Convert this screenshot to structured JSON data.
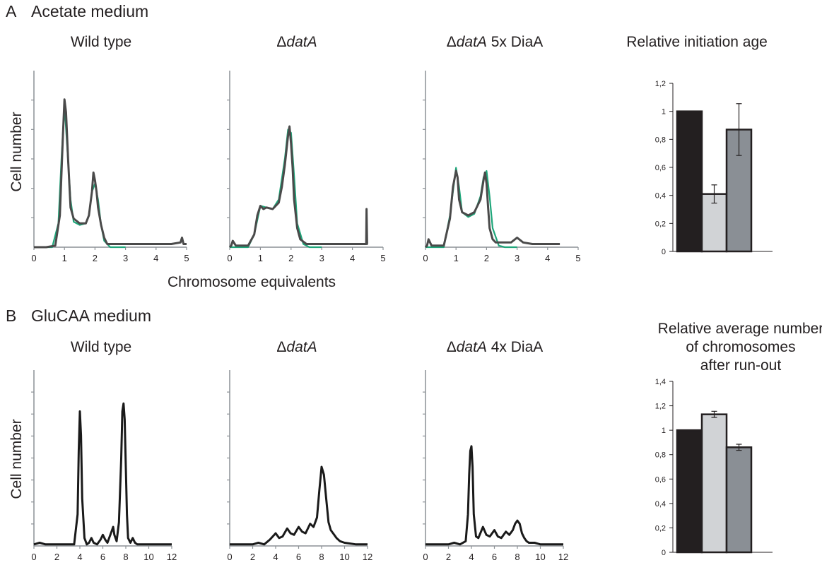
{
  "panels": {
    "A": {
      "letter": "A",
      "label": "Acetate medium"
    },
    "B": {
      "letter": "B",
      "label": "GluCAA medium"
    }
  },
  "axis_labels": {
    "ylabel": "Cell number",
    "xlabel": "Chromosome equivalents"
  },
  "titles": {
    "wild_type": "Wild type",
    "delta_symbol": "Δ",
    "datA": "datA",
    "diaA5": " 5x DiaA",
    "diaA4": " 4x DiaA",
    "initiation_age": "Relative initiation age",
    "runout_line1": "Relative average number",
    "runout_line2": "of chromosomes",
    "runout_line3": "after run-out"
  },
  "colors": {
    "measured": "#4a4a4a",
    "fit": "#1fa67a",
    "trace_b": "#1a1a1a",
    "bar_wt": "#231f20",
    "bar_datA": "#d1d3d6",
    "bar_diaA": "#8a8f95",
    "axis": "#8c9196"
  },
  "chart_data": [
    {
      "type": "line",
      "panel": "A",
      "title": "Wild type",
      "xlim": [
        0,
        5
      ],
      "xticks": [
        "0",
        "1",
        "2",
        "3",
        "4",
        "5"
      ],
      "ylabel": "Cell number",
      "xlabel": "Chromosome equivalents",
      "series": [
        {
          "x": [
            0,
            0.4,
            0.7,
            0.85,
            0.95,
            1.0,
            1.05,
            1.12,
            1.2,
            1.3,
            1.5,
            1.7,
            1.8,
            1.9,
            1.95,
            2.0,
            2.05,
            2.1,
            2.2,
            2.3,
            2.4,
            2.6,
            3,
            3.5,
            4,
            4.5,
            4.8,
            4.85,
            4.9,
            5
          ],
          "y": [
            0,
            0,
            0.01,
            0.2,
            0.7,
            0.93,
            0.85,
            0.55,
            0.25,
            0.18,
            0.15,
            0.15,
            0.2,
            0.35,
            0.47,
            0.42,
            0.35,
            0.25,
            0.14,
            0.06,
            0.02,
            0.02,
            0.02,
            0.02,
            0.02,
            0.02,
            0.03,
            0.06,
            0.02,
            0.02
          ]
        },
        {
          "x": [
            0,
            0.6,
            0.8,
            0.9,
            1.0,
            1.1,
            1.2,
            1.3,
            1.5,
            1.7,
            1.8,
            1.9,
            2.0,
            2.1,
            2.2,
            2.3,
            2.5,
            3
          ],
          "y": [
            0,
            0,
            0.15,
            0.55,
            0.9,
            0.6,
            0.3,
            0.16,
            0.14,
            0.15,
            0.2,
            0.35,
            0.4,
            0.3,
            0.14,
            0.04,
            0,
            0
          ]
        }
      ]
    },
    {
      "type": "line",
      "panel": "A",
      "title": "ΔdatA",
      "xlim": [
        0,
        5
      ],
      "xticks": [
        "0",
        "1",
        "2",
        "3",
        "4",
        "5"
      ],
      "series": [
        {
          "x": [
            0,
            0.05,
            0.1,
            0.2,
            0.6,
            0.8,
            0.9,
            1.0,
            1.1,
            1.2,
            1.4,
            1.6,
            1.7,
            1.8,
            1.9,
            1.95,
            2.0,
            2.05,
            2.1,
            2.2,
            2.3,
            2.5,
            3,
            3.5,
            4,
            4.45,
            4.46,
            4.48,
            4.5
          ],
          "y": [
            0,
            0.01,
            0.04,
            0.01,
            0.01,
            0.08,
            0.2,
            0.26,
            0.24,
            0.25,
            0.24,
            0.28,
            0.38,
            0.52,
            0.7,
            0.76,
            0.65,
            0.5,
            0.3,
            0.12,
            0.05,
            0.02,
            0.02,
            0.02,
            0.02,
            0.02,
            0.24,
            0.02,
            0.02
          ]
        },
        {
          "x": [
            0,
            0.6,
            0.8,
            1.0,
            1.2,
            1.4,
            1.6,
            1.8,
            1.9,
            2.0,
            2.1,
            2.2,
            2.4,
            2.6,
            3
          ],
          "y": [
            0,
            0,
            0.08,
            0.26,
            0.25,
            0.24,
            0.3,
            0.56,
            0.74,
            0.72,
            0.45,
            0.15,
            0.02,
            0,
            0
          ]
        }
      ]
    },
    {
      "type": "line",
      "panel": "A",
      "title": "ΔdatA 5x DiaA",
      "xlim": [
        0,
        5
      ],
      "xticks": [
        "0",
        "1",
        "2",
        "3",
        "4",
        "5"
      ],
      "series": [
        {
          "x": [
            0,
            0.05,
            0.1,
            0.2,
            0.6,
            0.8,
            0.9,
            1.0,
            1.05,
            1.1,
            1.2,
            1.4,
            1.6,
            1.8,
            1.9,
            1.95,
            2.0,
            2.05,
            2.1,
            2.2,
            2.3,
            2.5,
            2.8,
            3.0,
            3.2,
            3.5,
            4,
            4.4
          ],
          "y": [
            0,
            0.01,
            0.05,
            0.01,
            0.01,
            0.18,
            0.38,
            0.48,
            0.44,
            0.3,
            0.22,
            0.2,
            0.22,
            0.3,
            0.42,
            0.47,
            0.4,
            0.25,
            0.12,
            0.05,
            0.03,
            0.03,
            0.03,
            0.06,
            0.03,
            0.02,
            0.02,
            0.02
          ]
        },
        {
          "x": [
            0,
            0.6,
            0.8,
            1.0,
            1.1,
            1.2,
            1.4,
            1.6,
            1.8,
            1.9,
            2.0,
            2.1,
            2.2,
            2.4,
            2.6,
            3
          ],
          "y": [
            0,
            0,
            0.2,
            0.5,
            0.38,
            0.22,
            0.19,
            0.21,
            0.32,
            0.44,
            0.48,
            0.32,
            0.12,
            0.01,
            0,
            0
          ]
        }
      ]
    },
    {
      "type": "bar",
      "panel": "A",
      "title": "Relative initiation age",
      "ylim": [
        0,
        1.2
      ],
      "yticks": [
        "0",
        "0,2",
        "0,4",
        "0,6",
        "0,8",
        "1",
        "1,2"
      ],
      "values": [
        1.0,
        0.41,
        0.87
      ],
      "errors": [
        0,
        0.065,
        0.185
      ]
    },
    {
      "type": "line",
      "panel": "B",
      "title": "Wild type",
      "xlim": [
        0,
        12
      ],
      "xticks": [
        "0",
        "2",
        "4",
        "6",
        "8",
        "10",
        "12"
      ],
      "ylabel": "Cell number",
      "series": [
        {
          "x": [
            0,
            0.5,
            1,
            2,
            3,
            3.5,
            3.8,
            3.9,
            4.0,
            4.1,
            4.2,
            4.4,
            4.6,
            4.8,
            5.0,
            5.2,
            5.5,
            5.8,
            6.0,
            6.2,
            6.4,
            6.7,
            6.9,
            7.0,
            7.2,
            7.4,
            7.6,
            7.7,
            7.8,
            7.9,
            8.0,
            8.1,
            8.2,
            8.4,
            8.6,
            8.8,
            9,
            9.5,
            10,
            11,
            12
          ],
          "y": [
            0.01,
            0.02,
            0.01,
            0.01,
            0.01,
            0.01,
            0.2,
            0.6,
            0.85,
            0.7,
            0.3,
            0.05,
            0.01,
            0.02,
            0.05,
            0.02,
            0.01,
            0.04,
            0.07,
            0.04,
            0.02,
            0.08,
            0.12,
            0.07,
            0.03,
            0.15,
            0.55,
            0.85,
            0.9,
            0.8,
            0.5,
            0.2,
            0.05,
            0.02,
            0.05,
            0.02,
            0.01,
            0.01,
            0.01,
            0.01,
            0.01
          ]
        }
      ]
    },
    {
      "type": "line",
      "panel": "B",
      "title": "ΔdatA",
      "xlim": [
        0,
        12
      ],
      "xticks": [
        "0",
        "2",
        "4",
        "6",
        "8",
        "10",
        "12"
      ],
      "series": [
        {
          "x": [
            0,
            1,
            2,
            2.5,
            3,
            3.5,
            4.0,
            4.3,
            4.6,
            5.0,
            5.3,
            5.6,
            6.0,
            6.3,
            6.6,
            7.0,
            7.3,
            7.6,
            7.8,
            8.0,
            8.2,
            8.4,
            8.6,
            8.8,
            9.0,
            9.3,
            9.6,
            10,
            11,
            12
          ],
          "y": [
            0.01,
            0.01,
            0.01,
            0.02,
            0.01,
            0.04,
            0.08,
            0.05,
            0.06,
            0.11,
            0.08,
            0.07,
            0.12,
            0.09,
            0.08,
            0.14,
            0.12,
            0.18,
            0.35,
            0.5,
            0.45,
            0.3,
            0.15,
            0.1,
            0.08,
            0.05,
            0.03,
            0.02,
            0.01,
            0.01
          ]
        }
      ]
    },
    {
      "type": "line",
      "panel": "B",
      "title": "ΔdatA 4x DiaA",
      "xlim": [
        0,
        12
      ],
      "xticks": [
        "0",
        "2",
        "4",
        "6",
        "8",
        "10",
        "12"
      ],
      "series": [
        {
          "x": [
            0,
            1,
            2,
            2.5,
            3,
            3.5,
            3.7,
            3.8,
            3.9,
            4.0,
            4.1,
            4.2,
            4.4,
            4.6,
            5.0,
            5.3,
            5.6,
            6.0,
            6.3,
            6.6,
            7.0,
            7.3,
            7.6,
            7.8,
            8.0,
            8.2,
            8.4,
            8.6,
            8.8,
            9.0,
            9.5,
            10,
            11,
            12
          ],
          "y": [
            0.01,
            0.01,
            0.01,
            0.02,
            0.01,
            0.03,
            0.2,
            0.45,
            0.6,
            0.63,
            0.5,
            0.2,
            0.06,
            0.05,
            0.12,
            0.07,
            0.06,
            0.1,
            0.06,
            0.05,
            0.09,
            0.07,
            0.1,
            0.14,
            0.16,
            0.14,
            0.08,
            0.05,
            0.03,
            0.02,
            0.02,
            0.01,
            0.01,
            0.01
          ]
        }
      ]
    },
    {
      "type": "bar",
      "panel": "B",
      "title": "Relative average number of chromosomes after run-out",
      "ylim": [
        0,
        1.4
      ],
      "yticks": [
        "0",
        "0,2",
        "0,4",
        "0,6",
        "0,8",
        "1",
        "1,2",
        "1,4"
      ],
      "values": [
        1.0,
        1.13,
        0.86
      ],
      "errors": [
        0,
        0.025,
        0.025
      ]
    }
  ]
}
